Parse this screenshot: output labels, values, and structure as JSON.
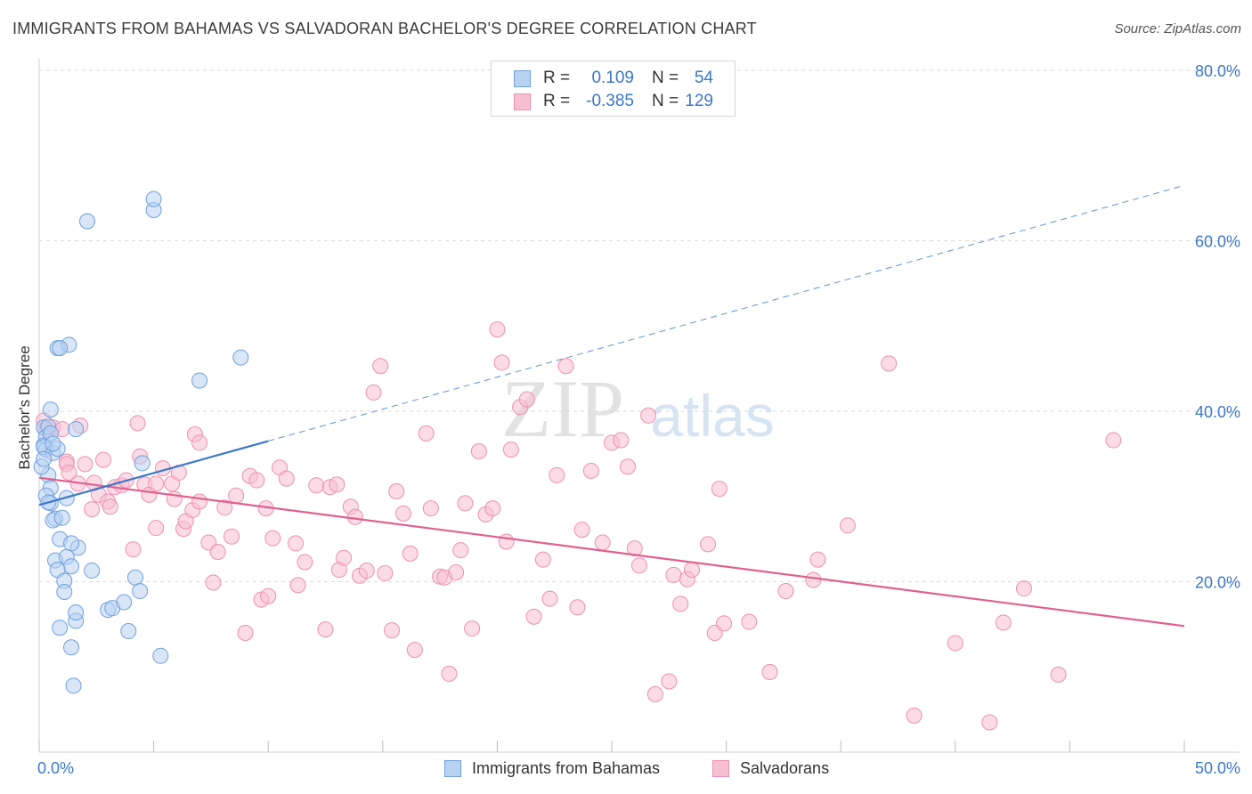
{
  "header": {
    "title": "IMMIGRANTS FROM BAHAMAS VS SALVADORAN BACHELOR'S DEGREE CORRELATION CHART",
    "source": "Source: ZipAtlas.com"
  },
  "watermark": {
    "text_zip": "ZIP",
    "text_atlas": "atlas"
  },
  "colors": {
    "blue_fill": "#b8d2f2",
    "blue_stroke": "#6fa0dd",
    "blue_line": "#3b78c8",
    "pink_fill": "#f7c0d2",
    "pink_stroke": "#ec8fb0",
    "pink_line": "#e0608e",
    "grid": "#d9d9d9",
    "tick_label": "#3b78c8"
  },
  "legend": {
    "rows": [
      {
        "r_label": "R =",
        "r_value": "0.109",
        "n_label": "N =",
        "n_value": "54"
      },
      {
        "r_label": "R =",
        "r_value": "-0.385",
        "n_label": "N =",
        "n_value": "129"
      }
    ]
  },
  "chart_data": {
    "type": "scatter",
    "title": "IMMIGRANTS FROM BAHAMAS VS SALVADORAN BACHELOR'S DEGREE CORRELATION CHART",
    "xlabel": "",
    "ylabel": "Bachelor's Degree",
    "xlim": [
      0,
      50
    ],
    "ylim": [
      0,
      80
    ],
    "x_tick_labels": [
      "0.0%",
      "50.0%"
    ],
    "y_ticks": [
      20,
      40,
      60,
      80
    ],
    "y_tick_labels": [
      "20.0%",
      "40.0%",
      "60.0%",
      "80.0%"
    ],
    "grid": true,
    "legend_position": "top-center",
    "series": [
      {
        "name": "Immigrants from Bahamas",
        "r": 0.109,
        "n": 54,
        "trend_solid": [
          [
            0,
            29.0
          ],
          [
            10,
            36.5
          ]
        ],
        "trend_dashed": [
          [
            10,
            36.5
          ],
          [
            50,
            66.5
          ]
        ],
        "points": [
          [
            0.2,
            38.1
          ],
          [
            0.3,
            37.0
          ],
          [
            0.2,
            36.0
          ],
          [
            0.4,
            38.2
          ],
          [
            0.5,
            37.4
          ],
          [
            0.3,
            35.5
          ],
          [
            0.2,
            35.8
          ],
          [
            0.6,
            35.1
          ],
          [
            0.8,
            35.6
          ],
          [
            0.5,
            40.2
          ],
          [
            0.4,
            32.5
          ],
          [
            0.5,
            31.0
          ],
          [
            0.3,
            30.1
          ],
          [
            0.5,
            29.2
          ],
          [
            0.4,
            29.3
          ],
          [
            0.7,
            27.4
          ],
          [
            0.6,
            27.2
          ],
          [
            1.2,
            29.8
          ],
          [
            0.9,
            25.0
          ],
          [
            1.7,
            24.0
          ],
          [
            1.4,
            24.5
          ],
          [
            0.7,
            22.5
          ],
          [
            1.2,
            22.9
          ],
          [
            1.4,
            21.8
          ],
          [
            0.8,
            21.4
          ],
          [
            1.1,
            20.1
          ],
          [
            2.3,
            21.3
          ],
          [
            1.1,
            18.8
          ],
          [
            0.9,
            14.6
          ],
          [
            1.6,
            15.4
          ],
          [
            1.4,
            12.3
          ],
          [
            1.5,
            7.8
          ],
          [
            1.6,
            16.4
          ],
          [
            3.0,
            16.7
          ],
          [
            3.2,
            16.9
          ],
          [
            3.7,
            17.6
          ],
          [
            4.2,
            20.5
          ],
          [
            4.4,
            18.9
          ],
          [
            3.9,
            14.2
          ],
          [
            5.3,
            11.3
          ],
          [
            4.5,
            33.9
          ],
          [
            1.6,
            37.9
          ],
          [
            0.8,
            47.4
          ],
          [
            1.3,
            47.8
          ],
          [
            0.9,
            47.4
          ],
          [
            2.1,
            62.3
          ],
          [
            5.0,
            63.6
          ],
          [
            5.0,
            64.9
          ],
          [
            7.0,
            43.6
          ],
          [
            8.8,
            46.3
          ],
          [
            0.1,
            33.5
          ],
          [
            0.2,
            34.4
          ],
          [
            1.0,
            27.5
          ],
          [
            0.6,
            36.2
          ]
        ]
      },
      {
        "name": "Salvadorans",
        "r": -0.385,
        "n": 129,
        "trend_solid": [
          [
            0,
            32.2
          ],
          [
            50,
            14.8
          ]
        ],
        "points": [
          [
            0.2,
            38.9
          ],
          [
            0.3,
            37.9
          ],
          [
            0.6,
            38.1
          ],
          [
            1.0,
            37.9
          ],
          [
            1.2,
            34.1
          ],
          [
            1.2,
            33.8
          ],
          [
            1.3,
            32.8
          ],
          [
            1.7,
            31.5
          ],
          [
            2.0,
            33.8
          ],
          [
            2.3,
            28.5
          ],
          [
            2.6,
            30.2
          ],
          [
            2.8,
            34.3
          ],
          [
            3.0,
            29.4
          ],
          [
            3.1,
            28.8
          ],
          [
            3.3,
            31.1
          ],
          [
            3.6,
            31.3
          ],
          [
            3.8,
            31.9
          ],
          [
            4.1,
            23.8
          ],
          [
            4.3,
            38.6
          ],
          [
            4.4,
            34.7
          ],
          [
            4.6,
            31.4
          ],
          [
            4.8,
            30.2
          ],
          [
            5.1,
            31.5
          ],
          [
            5.1,
            26.3
          ],
          [
            5.4,
            33.3
          ],
          [
            5.8,
            31.5
          ],
          [
            5.9,
            29.7
          ],
          [
            6.1,
            32.8
          ],
          [
            6.3,
            26.2
          ],
          [
            6.4,
            27.1
          ],
          [
            6.7,
            28.4
          ],
          [
            6.8,
            37.3
          ],
          [
            7.0,
            36.3
          ],
          [
            7.0,
            29.4
          ],
          [
            7.4,
            24.6
          ],
          [
            7.6,
            19.9
          ],
          [
            7.8,
            23.5
          ],
          [
            8.1,
            28.7
          ],
          [
            8.4,
            25.3
          ],
          [
            8.6,
            30.1
          ],
          [
            9.0,
            14.0
          ],
          [
            9.2,
            32.4
          ],
          [
            9.5,
            31.9
          ],
          [
            9.7,
            17.9
          ],
          [
            9.9,
            28.6
          ],
          [
            10.0,
            18.3
          ],
          [
            10.2,
            25.1
          ],
          [
            10.5,
            33.4
          ],
          [
            10.8,
            32.1
          ],
          [
            11.2,
            24.5
          ],
          [
            11.3,
            19.6
          ],
          [
            11.6,
            22.3
          ],
          [
            12.1,
            31.3
          ],
          [
            12.5,
            14.4
          ],
          [
            12.7,
            31.1
          ],
          [
            13.0,
            31.4
          ],
          [
            13.1,
            21.4
          ],
          [
            13.3,
            22.8
          ],
          [
            13.6,
            28.8
          ],
          [
            13.8,
            27.6
          ],
          [
            14.0,
            20.7
          ],
          [
            14.3,
            21.3
          ],
          [
            14.6,
            42.2
          ],
          [
            14.9,
            45.3
          ],
          [
            15.1,
            21.0
          ],
          [
            15.4,
            14.3
          ],
          [
            15.6,
            30.6
          ],
          [
            15.9,
            28.0
          ],
          [
            16.2,
            23.3
          ],
          [
            16.4,
            12.0
          ],
          [
            16.9,
            37.4
          ],
          [
            17.1,
            28.6
          ],
          [
            17.5,
            20.6
          ],
          [
            17.7,
            20.5
          ],
          [
            17.9,
            9.2
          ],
          [
            18.2,
            21.1
          ],
          [
            18.4,
            23.7
          ],
          [
            18.6,
            29.2
          ],
          [
            18.9,
            14.5
          ],
          [
            19.2,
            35.3
          ],
          [
            19.5,
            27.9
          ],
          [
            19.8,
            28.6
          ],
          [
            20.0,
            49.6
          ],
          [
            20.2,
            45.7
          ],
          [
            20.4,
            24.7
          ],
          [
            20.6,
            35.5
          ],
          [
            21.0,
            40.5
          ],
          [
            21.3,
            41.4
          ],
          [
            21.6,
            15.9
          ],
          [
            22.0,
            22.6
          ],
          [
            22.3,
            18.0
          ],
          [
            22.6,
            32.5
          ],
          [
            23.0,
            45.3
          ],
          [
            23.5,
            17.0
          ],
          [
            23.7,
            26.1
          ],
          [
            24.1,
            33.0
          ],
          [
            24.6,
            24.6
          ],
          [
            25.0,
            36.3
          ],
          [
            25.4,
            36.6
          ],
          [
            25.7,
            33.5
          ],
          [
            26.0,
            23.9
          ],
          [
            26.2,
            21.9
          ],
          [
            26.6,
            39.5
          ],
          [
            26.9,
            6.8
          ],
          [
            27.5,
            8.3
          ],
          [
            27.7,
            20.8
          ],
          [
            28.0,
            17.4
          ],
          [
            28.3,
            20.3
          ],
          [
            28.5,
            21.4
          ],
          [
            29.2,
            24.4
          ],
          [
            29.5,
            14.0
          ],
          [
            29.7,
            30.9
          ],
          [
            29.9,
            15.1
          ],
          [
            31.0,
            15.3
          ],
          [
            31.9,
            9.4
          ],
          [
            32.6,
            18.9
          ],
          [
            33.8,
            20.2
          ],
          [
            34.0,
            22.6
          ],
          [
            35.3,
            26.6
          ],
          [
            37.1,
            45.6
          ],
          [
            38.2,
            4.3
          ],
          [
            40.0,
            12.8
          ],
          [
            41.5,
            3.5
          ],
          [
            42.1,
            15.2
          ],
          [
            43.0,
            19.2
          ],
          [
            44.5,
            9.1
          ],
          [
            46.9,
            36.6
          ],
          [
            1.8,
            38.3
          ],
          [
            2.4,
            31.6
          ]
        ]
      }
    ]
  },
  "bottom_legend": {
    "items": [
      {
        "label": "Immigrants from Bahamas"
      },
      {
        "label": "Salvadorans"
      }
    ]
  }
}
